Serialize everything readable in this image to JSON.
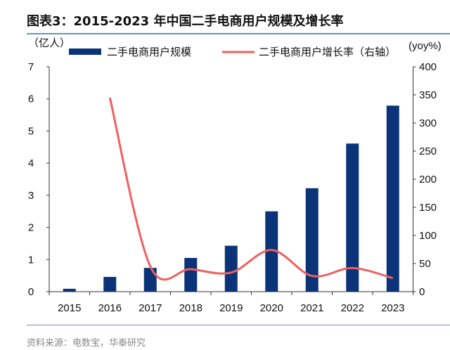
{
  "title": "图表3：2015-2023 年中国二手电商用户规模及增长率",
  "source": "资料来源：电数宝，华泰研究",
  "chart_data": {
    "type": "bar+line",
    "categories": [
      "2015",
      "2016",
      "2017",
      "2018",
      "2019",
      "2020",
      "2021",
      "2022",
      "2023"
    ],
    "left_axis": {
      "label": "（亿人）",
      "ylim": [
        0,
        7
      ],
      "ticks": [
        "0",
        "1",
        "2",
        "3",
        "4",
        "5",
        "6",
        "7"
      ]
    },
    "right_axis": {
      "label": "(yoy%)",
      "ylim": [
        0,
        400
      ],
      "ticks": [
        "0",
        "50",
        "100",
        "150",
        "200",
        "250",
        "300",
        "350",
        "400"
      ]
    },
    "series": [
      {
        "name": "二手电商用户规模",
        "type": "bar",
        "axis": "left",
        "color": "#0b3478",
        "values": [
          0.09,
          0.46,
          0.74,
          1.05,
          1.43,
          2.5,
          3.22,
          4.61,
          5.79
        ]
      },
      {
        "name": "二手电商用户增长率（右轴）",
        "type": "line",
        "axis": "right",
        "color": "#f0605f",
        "values": [
          null,
          345,
          45,
          40,
          34,
          74,
          28,
          42,
          24
        ]
      }
    ],
    "grid": false,
    "legend": "top"
  }
}
